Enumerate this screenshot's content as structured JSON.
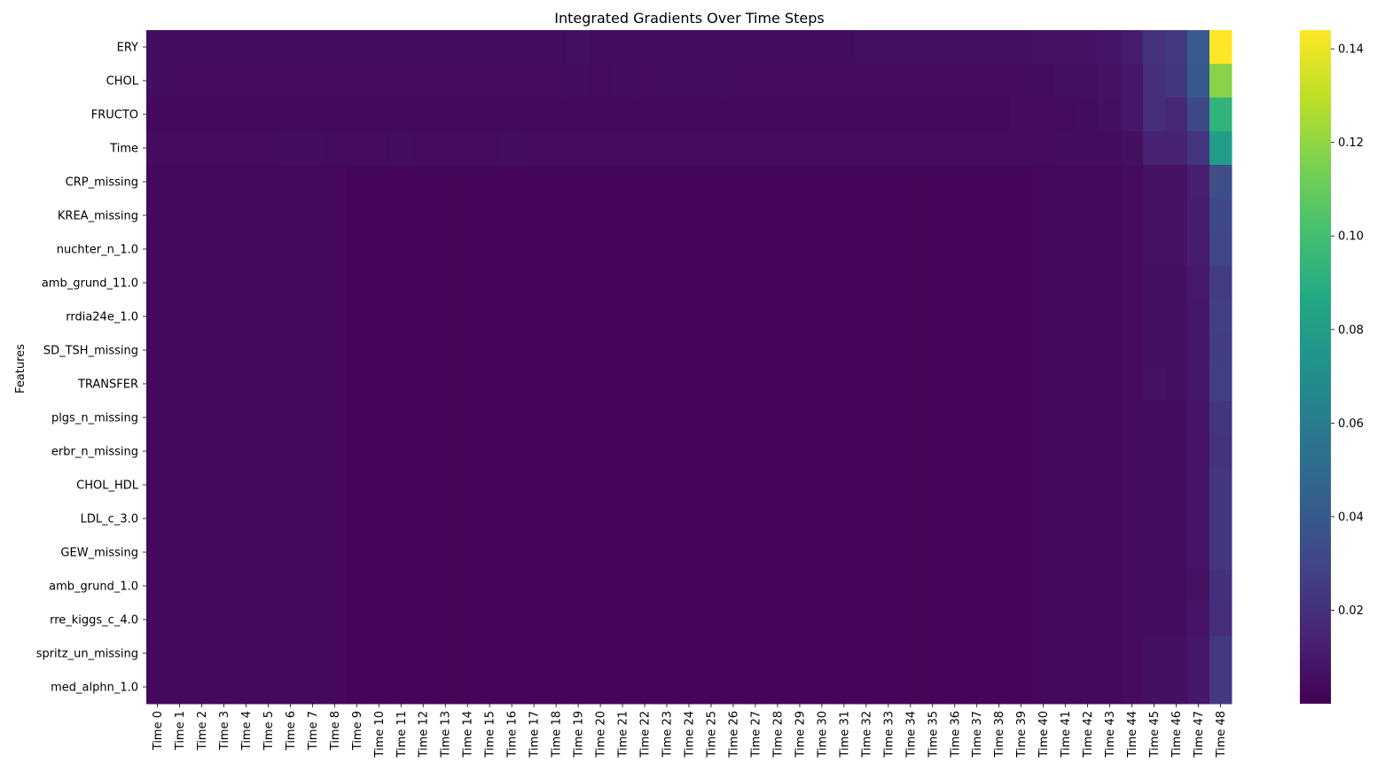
{
  "chart_data": {
    "type": "heatmap",
    "title": "Integrated Gradients Over Time Steps",
    "xlabel": "",
    "ylabel": "Features",
    "colormap": "viridis",
    "colorbar": {
      "range": [
        0.0,
        0.144
      ],
      "ticks": [
        0.02,
        0.04,
        0.06,
        0.08,
        0.1,
        0.12,
        0.14
      ],
      "tick_labels": [
        "0.02",
        "0.04",
        "0.06",
        "0.08",
        "0.10",
        "0.12",
        "0.14"
      ]
    },
    "x_labels": [
      "Time 0",
      "Time 1",
      "Time 2",
      "Time 3",
      "Time 4",
      "Time 5",
      "Time 6",
      "Time 7",
      "Time 8",
      "Time 9",
      "Time 10",
      "Time 11",
      "Time 12",
      "Time 13",
      "Time 14",
      "Time 15",
      "Time 16",
      "Time 17",
      "Time 18",
      "Time 19",
      "Time 20",
      "Time 21",
      "Time 22",
      "Time 23",
      "Time 24",
      "Time 25",
      "Time 26",
      "Time 27",
      "Time 28",
      "Time 29",
      "Time 30",
      "Time 31",
      "Time 32",
      "Time 33",
      "Time 34",
      "Time 35",
      "Time 36",
      "Time 37",
      "Time 38",
      "Time 39",
      "Time 40",
      "Time 41",
      "Time 42",
      "Time 43",
      "Time 44",
      "Time 45",
      "Time 46",
      "Time 47",
      "Time 48"
    ],
    "y_labels": [
      "ERY",
      "CHOL",
      "FRUCTO",
      "Time",
      "CRP_missing",
      "KREA_missing",
      "nuchter_n_1.0",
      "amb_grund_11.0",
      "rrdia24e_1.0",
      "SD_TSH_missing",
      "TRANSFER",
      "plgs_n_missing",
      "erbr_n_missing",
      "CHOL_HDL",
      "LDL_c_3.0",
      "GEW_missing",
      "amb_grund_1.0",
      "rre_kiggs_c_4.0",
      "spritz_un_missing",
      "med_alphn_1.0"
    ],
    "values": [
      [
        0.005,
        0.005,
        0.005,
        0.005,
        0.005,
        0.005,
        0.005,
        0.005,
        0.005,
        0.005,
        0.005,
        0.005,
        0.005,
        0.005,
        0.005,
        0.005,
        0.005,
        0.005,
        0.005,
        0.006,
        0.005,
        0.005,
        0.005,
        0.005,
        0.005,
        0.005,
        0.005,
        0.005,
        0.005,
        0.005,
        0.005,
        0.005,
        0.006,
        0.006,
        0.006,
        0.006,
        0.006,
        0.006,
        0.006,
        0.006,
        0.007,
        0.007,
        0.007,
        0.008,
        0.011,
        0.021,
        0.024,
        0.042,
        0.144
      ],
      [
        0.005,
        0.004,
        0.004,
        0.004,
        0.004,
        0.004,
        0.004,
        0.004,
        0.004,
        0.004,
        0.004,
        0.004,
        0.004,
        0.004,
        0.004,
        0.004,
        0.004,
        0.004,
        0.004,
        0.005,
        0.004,
        0.005,
        0.004,
        0.005,
        0.005,
        0.005,
        0.004,
        0.004,
        0.004,
        0.004,
        0.004,
        0.004,
        0.004,
        0.004,
        0.004,
        0.004,
        0.004,
        0.004,
        0.004,
        0.004,
        0.005,
        0.006,
        0.006,
        0.007,
        0.009,
        0.02,
        0.022,
        0.04,
        0.118
      ],
      [
        0.003,
        0.003,
        0.003,
        0.003,
        0.003,
        0.003,
        0.003,
        0.003,
        0.003,
        0.003,
        0.003,
        0.003,
        0.003,
        0.003,
        0.003,
        0.003,
        0.003,
        0.003,
        0.003,
        0.003,
        0.003,
        0.003,
        0.003,
        0.003,
        0.003,
        0.003,
        0.003,
        0.003,
        0.003,
        0.003,
        0.003,
        0.003,
        0.003,
        0.003,
        0.003,
        0.003,
        0.003,
        0.003,
        0.003,
        0.004,
        0.004,
        0.004,
        0.005,
        0.006,
        0.009,
        0.019,
        0.016,
        0.032,
        0.093
      ],
      [
        0.004,
        0.004,
        0.004,
        0.004,
        0.004,
        0.004,
        0.005,
        0.005,
        0.004,
        0.004,
        0.004,
        0.005,
        0.004,
        0.004,
        0.004,
        0.004,
        0.005,
        0.004,
        0.004,
        0.004,
        0.004,
        0.004,
        0.004,
        0.004,
        0.004,
        0.004,
        0.004,
        0.004,
        0.004,
        0.004,
        0.004,
        0.004,
        0.004,
        0.004,
        0.004,
        0.004,
        0.004,
        0.004,
        0.004,
        0.004,
        0.004,
        0.005,
        0.005,
        0.005,
        0.006,
        0.014,
        0.014,
        0.022,
        0.08
      ],
      [
        0.003,
        0.003,
        0.003,
        0.003,
        0.003,
        0.003,
        0.003,
        0.003,
        0.003,
        0.002,
        0.002,
        0.002,
        0.002,
        0.002,
        0.002,
        0.002,
        0.002,
        0.002,
        0.002,
        0.002,
        0.002,
        0.002,
        0.002,
        0.002,
        0.002,
        0.002,
        0.002,
        0.002,
        0.002,
        0.002,
        0.002,
        0.002,
        0.002,
        0.002,
        0.002,
        0.002,
        0.002,
        0.002,
        0.002,
        0.002,
        0.003,
        0.003,
        0.003,
        0.003,
        0.004,
        0.007,
        0.007,
        0.012,
        0.034
      ],
      [
        0.003,
        0.003,
        0.003,
        0.003,
        0.003,
        0.003,
        0.003,
        0.003,
        0.003,
        0.002,
        0.002,
        0.002,
        0.002,
        0.002,
        0.002,
        0.002,
        0.002,
        0.002,
        0.002,
        0.002,
        0.002,
        0.002,
        0.002,
        0.002,
        0.002,
        0.002,
        0.002,
        0.002,
        0.002,
        0.002,
        0.002,
        0.002,
        0.002,
        0.002,
        0.002,
        0.002,
        0.002,
        0.002,
        0.002,
        0.002,
        0.003,
        0.003,
        0.003,
        0.003,
        0.004,
        0.007,
        0.007,
        0.011,
        0.031
      ],
      [
        0.003,
        0.003,
        0.003,
        0.003,
        0.003,
        0.003,
        0.003,
        0.003,
        0.003,
        0.002,
        0.002,
        0.002,
        0.002,
        0.002,
        0.002,
        0.002,
        0.002,
        0.002,
        0.002,
        0.002,
        0.002,
        0.002,
        0.002,
        0.002,
        0.002,
        0.002,
        0.002,
        0.002,
        0.002,
        0.002,
        0.002,
        0.002,
        0.002,
        0.002,
        0.002,
        0.002,
        0.002,
        0.002,
        0.002,
        0.002,
        0.003,
        0.003,
        0.003,
        0.003,
        0.004,
        0.007,
        0.007,
        0.011,
        0.03
      ],
      [
        0.003,
        0.003,
        0.003,
        0.003,
        0.003,
        0.003,
        0.003,
        0.003,
        0.003,
        0.002,
        0.002,
        0.002,
        0.002,
        0.002,
        0.002,
        0.002,
        0.002,
        0.002,
        0.002,
        0.002,
        0.002,
        0.002,
        0.002,
        0.002,
        0.002,
        0.002,
        0.002,
        0.002,
        0.002,
        0.002,
        0.002,
        0.002,
        0.002,
        0.002,
        0.002,
        0.002,
        0.002,
        0.002,
        0.002,
        0.002,
        0.003,
        0.003,
        0.003,
        0.003,
        0.004,
        0.006,
        0.006,
        0.01,
        0.025
      ],
      [
        0.003,
        0.003,
        0.003,
        0.003,
        0.003,
        0.003,
        0.003,
        0.003,
        0.003,
        0.002,
        0.002,
        0.002,
        0.002,
        0.002,
        0.002,
        0.002,
        0.002,
        0.002,
        0.002,
        0.002,
        0.002,
        0.002,
        0.002,
        0.002,
        0.002,
        0.002,
        0.002,
        0.002,
        0.002,
        0.002,
        0.002,
        0.002,
        0.002,
        0.002,
        0.002,
        0.002,
        0.002,
        0.002,
        0.002,
        0.002,
        0.003,
        0.003,
        0.003,
        0.003,
        0.004,
        0.006,
        0.006,
        0.009,
        0.027
      ],
      [
        0.003,
        0.003,
        0.003,
        0.003,
        0.003,
        0.003,
        0.003,
        0.003,
        0.003,
        0.002,
        0.002,
        0.002,
        0.002,
        0.002,
        0.002,
        0.002,
        0.002,
        0.002,
        0.002,
        0.002,
        0.002,
        0.002,
        0.002,
        0.002,
        0.002,
        0.002,
        0.002,
        0.002,
        0.002,
        0.002,
        0.002,
        0.002,
        0.002,
        0.002,
        0.002,
        0.002,
        0.002,
        0.002,
        0.002,
        0.002,
        0.003,
        0.003,
        0.003,
        0.003,
        0.004,
        0.006,
        0.006,
        0.009,
        0.026
      ],
      [
        0.003,
        0.003,
        0.003,
        0.003,
        0.003,
        0.003,
        0.003,
        0.003,
        0.003,
        0.002,
        0.002,
        0.002,
        0.002,
        0.002,
        0.002,
        0.002,
        0.002,
        0.002,
        0.002,
        0.002,
        0.002,
        0.002,
        0.002,
        0.002,
        0.002,
        0.002,
        0.002,
        0.002,
        0.002,
        0.002,
        0.002,
        0.002,
        0.002,
        0.002,
        0.002,
        0.002,
        0.002,
        0.002,
        0.002,
        0.002,
        0.003,
        0.003,
        0.003,
        0.003,
        0.004,
        0.007,
        0.006,
        0.009,
        0.027
      ],
      [
        0.003,
        0.003,
        0.003,
        0.003,
        0.003,
        0.003,
        0.003,
        0.003,
        0.003,
        0.002,
        0.002,
        0.002,
        0.002,
        0.002,
        0.002,
        0.002,
        0.002,
        0.002,
        0.002,
        0.002,
        0.002,
        0.002,
        0.002,
        0.002,
        0.002,
        0.002,
        0.002,
        0.002,
        0.002,
        0.002,
        0.002,
        0.002,
        0.002,
        0.002,
        0.002,
        0.002,
        0.002,
        0.002,
        0.002,
        0.002,
        0.003,
        0.003,
        0.003,
        0.003,
        0.004,
        0.005,
        0.005,
        0.008,
        0.022
      ],
      [
        0.003,
        0.003,
        0.003,
        0.003,
        0.003,
        0.003,
        0.003,
        0.003,
        0.003,
        0.002,
        0.002,
        0.002,
        0.002,
        0.002,
        0.002,
        0.002,
        0.002,
        0.002,
        0.002,
        0.002,
        0.002,
        0.002,
        0.002,
        0.002,
        0.002,
        0.002,
        0.002,
        0.002,
        0.002,
        0.002,
        0.002,
        0.002,
        0.002,
        0.002,
        0.002,
        0.002,
        0.002,
        0.002,
        0.002,
        0.002,
        0.003,
        0.003,
        0.003,
        0.003,
        0.004,
        0.005,
        0.005,
        0.008,
        0.021
      ],
      [
        0.003,
        0.003,
        0.003,
        0.003,
        0.003,
        0.003,
        0.003,
        0.003,
        0.003,
        0.002,
        0.002,
        0.002,
        0.002,
        0.002,
        0.002,
        0.002,
        0.002,
        0.002,
        0.002,
        0.002,
        0.002,
        0.002,
        0.002,
        0.002,
        0.002,
        0.002,
        0.002,
        0.002,
        0.002,
        0.002,
        0.002,
        0.002,
        0.002,
        0.002,
        0.002,
        0.002,
        0.002,
        0.002,
        0.002,
        0.002,
        0.003,
        0.003,
        0.003,
        0.003,
        0.004,
        0.005,
        0.005,
        0.008,
        0.023
      ],
      [
        0.003,
        0.003,
        0.003,
        0.003,
        0.003,
        0.003,
        0.003,
        0.003,
        0.003,
        0.002,
        0.002,
        0.002,
        0.002,
        0.002,
        0.002,
        0.002,
        0.002,
        0.002,
        0.002,
        0.002,
        0.002,
        0.002,
        0.002,
        0.002,
        0.002,
        0.002,
        0.002,
        0.002,
        0.002,
        0.002,
        0.002,
        0.002,
        0.002,
        0.002,
        0.002,
        0.002,
        0.002,
        0.002,
        0.002,
        0.002,
        0.003,
        0.003,
        0.003,
        0.003,
        0.004,
        0.005,
        0.005,
        0.008,
        0.023
      ],
      [
        0.003,
        0.003,
        0.003,
        0.003,
        0.003,
        0.003,
        0.003,
        0.003,
        0.003,
        0.002,
        0.002,
        0.002,
        0.002,
        0.002,
        0.002,
        0.002,
        0.002,
        0.002,
        0.002,
        0.002,
        0.002,
        0.002,
        0.002,
        0.002,
        0.002,
        0.002,
        0.002,
        0.002,
        0.002,
        0.002,
        0.002,
        0.002,
        0.002,
        0.002,
        0.002,
        0.002,
        0.002,
        0.002,
        0.002,
        0.002,
        0.003,
        0.003,
        0.003,
        0.003,
        0.004,
        0.005,
        0.005,
        0.008,
        0.023
      ],
      [
        0.003,
        0.003,
        0.003,
        0.003,
        0.003,
        0.003,
        0.003,
        0.003,
        0.003,
        0.002,
        0.002,
        0.002,
        0.002,
        0.002,
        0.002,
        0.002,
        0.002,
        0.002,
        0.002,
        0.002,
        0.002,
        0.002,
        0.002,
        0.002,
        0.002,
        0.002,
        0.002,
        0.002,
        0.002,
        0.002,
        0.002,
        0.002,
        0.002,
        0.002,
        0.002,
        0.002,
        0.002,
        0.002,
        0.002,
        0.002,
        0.003,
        0.003,
        0.003,
        0.003,
        0.004,
        0.005,
        0.005,
        0.007,
        0.02
      ],
      [
        0.003,
        0.003,
        0.003,
        0.003,
        0.003,
        0.003,
        0.003,
        0.003,
        0.003,
        0.002,
        0.002,
        0.002,
        0.002,
        0.002,
        0.002,
        0.002,
        0.002,
        0.002,
        0.002,
        0.002,
        0.002,
        0.002,
        0.002,
        0.002,
        0.002,
        0.002,
        0.002,
        0.002,
        0.002,
        0.002,
        0.002,
        0.002,
        0.002,
        0.002,
        0.002,
        0.002,
        0.002,
        0.002,
        0.002,
        0.002,
        0.003,
        0.003,
        0.003,
        0.003,
        0.004,
        0.005,
        0.005,
        0.008,
        0.019
      ],
      [
        0.003,
        0.003,
        0.003,
        0.003,
        0.003,
        0.003,
        0.003,
        0.003,
        0.003,
        0.002,
        0.002,
        0.002,
        0.002,
        0.002,
        0.002,
        0.002,
        0.002,
        0.002,
        0.002,
        0.002,
        0.002,
        0.002,
        0.002,
        0.002,
        0.002,
        0.002,
        0.002,
        0.002,
        0.002,
        0.002,
        0.002,
        0.002,
        0.002,
        0.002,
        0.002,
        0.002,
        0.002,
        0.002,
        0.002,
        0.002,
        0.003,
        0.003,
        0.003,
        0.003,
        0.004,
        0.006,
        0.006,
        0.009,
        0.024
      ],
      [
        0.003,
        0.003,
        0.003,
        0.003,
        0.003,
        0.003,
        0.003,
        0.003,
        0.003,
        0.002,
        0.002,
        0.002,
        0.002,
        0.002,
        0.002,
        0.002,
        0.002,
        0.002,
        0.002,
        0.002,
        0.002,
        0.002,
        0.002,
        0.002,
        0.002,
        0.002,
        0.002,
        0.002,
        0.002,
        0.002,
        0.002,
        0.002,
        0.002,
        0.002,
        0.002,
        0.002,
        0.002,
        0.002,
        0.002,
        0.002,
        0.003,
        0.003,
        0.003,
        0.003,
        0.004,
        0.006,
        0.006,
        0.009,
        0.024
      ]
    ]
  }
}
